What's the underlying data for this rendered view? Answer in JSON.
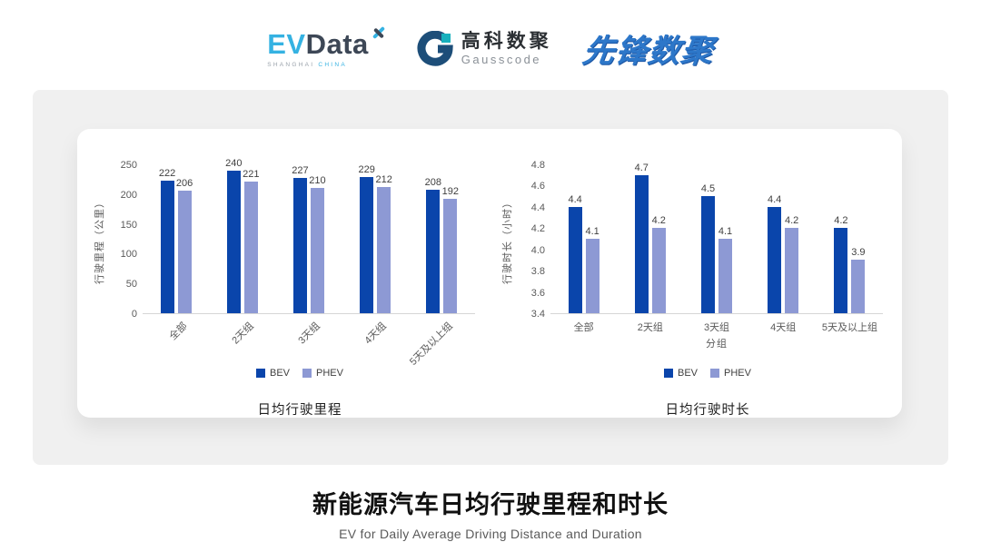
{
  "header": {
    "logos": {
      "evdata": {
        "ev": "EV",
        "data": "Data",
        "sub_left": "SHANGHAI",
        "sub_right": "CHINA"
      },
      "gausscode": {
        "cn": "高科数聚",
        "en": "Gausscode"
      },
      "xianfeng": {
        "text": "先锋数聚"
      }
    }
  },
  "colors": {
    "bev": "#0a45ab",
    "phev": "#8d99d4",
    "card_bg": "#f0f0f0",
    "axis_text": "#595959",
    "data_label_text": "#404040",
    "gausscode_navy": "#1d4e79",
    "gausscode_teal": "#17b0bd",
    "evdata_cyan": "#35b2e2"
  },
  "chart_data": [
    {
      "type": "bar",
      "title": "日均行驶里程",
      "ylabel": "行驶里程（公里）",
      "xlabel": "",
      "categories": [
        "全部",
        "2天组",
        "3天组",
        "4天组",
        "5天及以上组"
      ],
      "rotated_category_labels": true,
      "ymin": 0,
      "ymax": 250,
      "yticks": [
        "250",
        "200",
        "150",
        "100",
        "50",
        "0"
      ],
      "grid": false,
      "legend_position": "bottom",
      "series": [
        {
          "name": "BEV",
          "color": "#0a45ab",
          "values": [
            222,
            240,
            227,
            229,
            208
          ],
          "value_labels": [
            "222",
            "240",
            "227",
            "229",
            "208"
          ]
        },
        {
          "name": "PHEV",
          "color": "#8d99d4",
          "values": [
            206,
            221,
            210,
            212,
            192
          ],
          "value_labels": [
            "206",
            "221",
            "210",
            "212",
            "192"
          ]
        }
      ]
    },
    {
      "type": "bar",
      "title": "日均行驶时长",
      "ylabel": "行驶时长（小时）",
      "xlabel": "分组",
      "categories": [
        "全部",
        "2天组",
        "3天组",
        "4天组",
        "5天及以上组"
      ],
      "rotated_category_labels": false,
      "ymin": 3.4,
      "ymax": 4.8,
      "yticks": [
        "4.8",
        "4.6",
        "4.4",
        "4.2",
        "4.0",
        "3.8",
        "3.6",
        "3.4"
      ],
      "grid": false,
      "legend_position": "bottom",
      "series": [
        {
          "name": "BEV",
          "color": "#0a45ab",
          "values": [
            4.4,
            4.7,
            4.5,
            4.4,
            4.2
          ],
          "value_labels": [
            "4.4",
            "4.7",
            "4.5",
            "4.4",
            "4.2"
          ]
        },
        {
          "name": "PHEV",
          "color": "#8d99d4",
          "values": [
            4.1,
            4.2,
            4.1,
            4.2,
            3.9
          ],
          "value_labels": [
            "4.1",
            "4.2",
            "4.1",
            "4.2",
            "3.9"
          ]
        }
      ]
    }
  ],
  "footer": {
    "title": "新能源汽车日均行驶里程和时长",
    "subtitle": "EV for Daily Average Driving Distance and Duration"
  }
}
